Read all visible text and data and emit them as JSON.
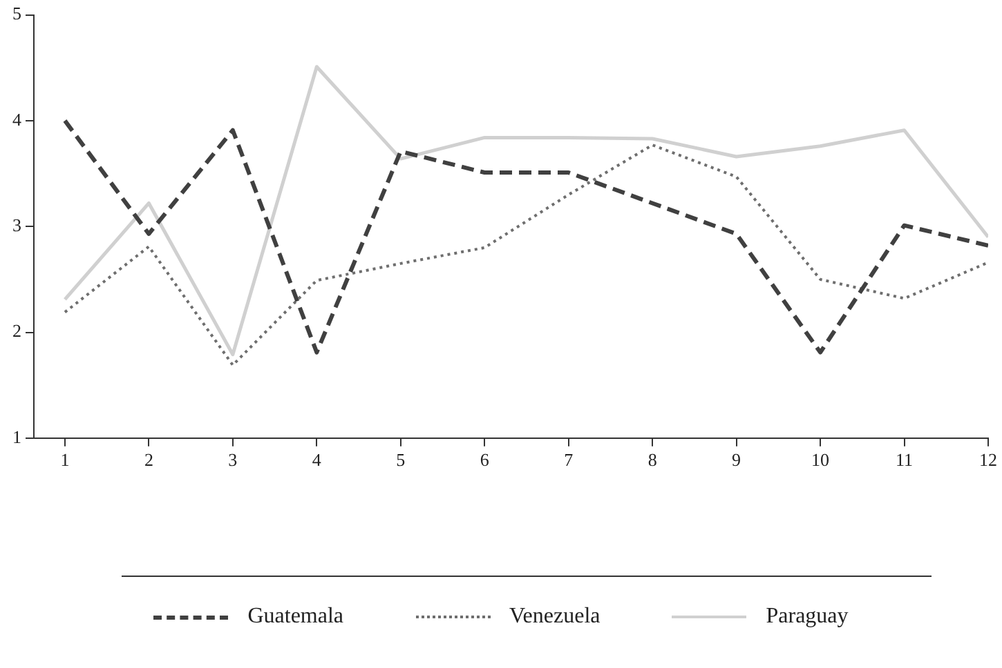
{
  "chart_data": {
    "type": "line",
    "x": [
      1,
      2,
      3,
      4,
      5,
      6,
      7,
      8,
      9,
      10,
      11,
      12
    ],
    "xlim": [
      0.63,
      12
    ],
    "xticks": [
      1,
      2,
      3,
      4,
      5,
      6,
      7,
      8,
      9,
      10,
      11,
      12
    ],
    "ylim": [
      1,
      5
    ],
    "yticks": [
      1,
      2,
      3,
      4,
      5
    ],
    "grid": false,
    "legend": "bottom",
    "marker": "none",
    "series": [
      {
        "name": "Guatemala",
        "color": "#404040",
        "line_style": "dashed",
        "values": [
          4.0,
          2.93,
          3.91,
          1.81,
          3.71,
          3.51,
          3.51,
          3.22,
          2.93,
          1.81,
          3.01,
          2.82
        ]
      },
      {
        "name": "Venezuela",
        "color": "#6e6e6e",
        "line_style": "dotted",
        "values": [
          2.19,
          2.81,
          1.69,
          2.49,
          2.65,
          2.8,
          3.3,
          3.77,
          3.47,
          2.5,
          2.32,
          2.66
        ]
      },
      {
        "name": "Paraguay",
        "color": "#d0d0d0",
        "line_style": "solid",
        "values": [
          2.31,
          3.22,
          1.79,
          4.51,
          3.64,
          3.84,
          3.84,
          3.83,
          3.66,
          3.76,
          3.91,
          2.9
        ]
      }
    ]
  }
}
